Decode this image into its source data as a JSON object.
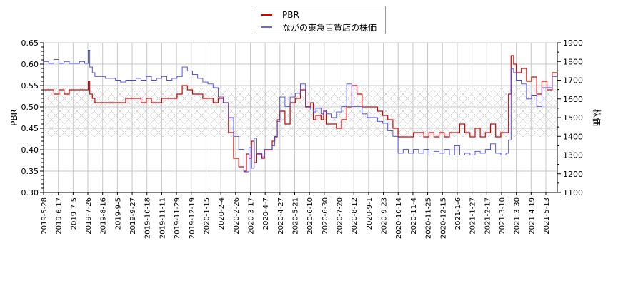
{
  "chart_data": {
    "type": "line",
    "title": "",
    "legend": {
      "position": "top-center",
      "entries": [
        {
          "label": "PBR",
          "color": "#dd0000"
        },
        {
          "label": "ながの東急百貨店の株価",
          "color": "#4444ee"
        }
      ]
    },
    "xlabel": "",
    "ylabel": "PBR",
    "y2label": "株価",
    "ylim": [
      0.3,
      0.65
    ],
    "y2lim": [
      1100,
      1900
    ],
    "yticks": [
      "0.30",
      "0.35",
      "0.40",
      "0.45",
      "0.50",
      "0.55",
      "0.60",
      "0.65"
    ],
    "y2ticks": [
      "1100",
      "1200",
      "1300",
      "1400",
      "1500",
      "1600",
      "1700",
      "1800",
      "1900"
    ],
    "grid": true,
    "hatched_band": {
      "ymin": 0.43,
      "ymax": 0.547
    },
    "x_tick_labels": [
      "2019-5-28",
      "2019-6-17",
      "2019-7-5",
      "2019-7-26",
      "2019-8-16",
      "2019-9-5",
      "2019-9-27",
      "2019-10-18",
      "2019-11-11",
      "2019-11-29",
      "2019-12-19",
      "2020-1-15",
      "2020-2-4",
      "2020-2-26",
      "2020-3-17",
      "2020-4-7",
      "2020-4-27",
      "2020-5-21",
      "2020-6-10",
      "2020-6-30",
      "2020-7-20",
      "2020-8-12",
      "2020-9-1",
      "2020-9-23",
      "2020-10-14",
      "2020-11-4",
      "2020-11-25",
      "2020-12-15",
      "2021-1-6",
      "2021-1-27",
      "2021-2-17",
      "2021-3-10",
      "2021-3-30",
      "2021-4-19",
      "2021-5-13"
    ],
    "series": [
      {
        "name": "PBR",
        "axis": "left",
        "color": "#dd0000",
        "x_frac": [
          0.0,
          0.01,
          0.02,
          0.03,
          0.04,
          0.05,
          0.06,
          0.07,
          0.08,
          0.087,
          0.09,
          0.095,
          0.1,
          0.11,
          0.12,
          0.13,
          0.14,
          0.15,
          0.16,
          0.17,
          0.18,
          0.19,
          0.2,
          0.21,
          0.22,
          0.23,
          0.24,
          0.25,
          0.26,
          0.27,
          0.28,
          0.29,
          0.3,
          0.31,
          0.32,
          0.33,
          0.34,
          0.35,
          0.36,
          0.37,
          0.38,
          0.39,
          0.395,
          0.4,
          0.405,
          0.41,
          0.415,
          0.42,
          0.425,
          0.43,
          0.44,
          0.445,
          0.45,
          0.455,
          0.46,
          0.47,
          0.48,
          0.49,
          0.5,
          0.51,
          0.52,
          0.525,
          0.53,
          0.54,
          0.545,
          0.55,
          0.56,
          0.57,
          0.58,
          0.59,
          0.6,
          0.61,
          0.62,
          0.63,
          0.64,
          0.65,
          0.66,
          0.67,
          0.68,
          0.69,
          0.7,
          0.71,
          0.72,
          0.73,
          0.74,
          0.75,
          0.76,
          0.77,
          0.78,
          0.79,
          0.8,
          0.81,
          0.82,
          0.83,
          0.84,
          0.85,
          0.86,
          0.87,
          0.88,
          0.89,
          0.9,
          0.905,
          0.91,
          0.915,
          0.92,
          0.93,
          0.94,
          0.95,
          0.96,
          0.97,
          0.98,
          0.99,
          1.0
        ],
        "values": [
          0.54,
          0.54,
          0.53,
          0.54,
          0.53,
          0.54,
          0.54,
          0.54,
          0.54,
          0.56,
          0.53,
          0.52,
          0.51,
          0.51,
          0.51,
          0.51,
          0.51,
          0.51,
          0.52,
          0.52,
          0.52,
          0.51,
          0.52,
          0.51,
          0.51,
          0.52,
          0.52,
          0.52,
          0.53,
          0.55,
          0.54,
          0.53,
          0.53,
          0.52,
          0.52,
          0.51,
          0.52,
          0.51,
          0.44,
          0.38,
          0.36,
          0.35,
          0.39,
          0.38,
          0.42,
          0.37,
          0.39,
          0.39,
          0.38,
          0.4,
          0.4,
          0.42,
          0.43,
          0.47,
          0.49,
          0.46,
          0.51,
          0.52,
          0.54,
          0.5,
          0.51,
          0.47,
          0.48,
          0.47,
          0.49,
          0.46,
          0.46,
          0.45,
          0.47,
          0.5,
          0.55,
          0.53,
          0.5,
          0.5,
          0.5,
          0.49,
          0.48,
          0.47,
          0.45,
          0.43,
          0.43,
          0.43,
          0.44,
          0.44,
          0.43,
          0.44,
          0.43,
          0.44,
          0.43,
          0.44,
          0.44,
          0.46,
          0.44,
          0.43,
          0.45,
          0.43,
          0.44,
          0.46,
          0.43,
          0.44,
          0.44,
          0.53,
          0.62,
          0.6,
          0.58,
          0.59,
          0.56,
          0.57,
          0.53,
          0.56,
          0.54,
          0.58,
          0.57,
          0.57
        ]
      },
      {
        "name": "ながの東急百貨店の株価",
        "axis": "right",
        "color": "#4444ee",
        "x_frac": [
          0.0,
          0.01,
          0.02,
          0.03,
          0.04,
          0.05,
          0.06,
          0.07,
          0.08,
          0.087,
          0.09,
          0.095,
          0.1,
          0.11,
          0.12,
          0.13,
          0.14,
          0.15,
          0.16,
          0.17,
          0.18,
          0.19,
          0.2,
          0.21,
          0.22,
          0.23,
          0.24,
          0.25,
          0.26,
          0.27,
          0.28,
          0.29,
          0.3,
          0.31,
          0.32,
          0.33,
          0.34,
          0.35,
          0.36,
          0.37,
          0.38,
          0.39,
          0.395,
          0.4,
          0.405,
          0.41,
          0.415,
          0.42,
          0.425,
          0.43,
          0.44,
          0.445,
          0.45,
          0.455,
          0.46,
          0.47,
          0.48,
          0.49,
          0.5,
          0.51,
          0.52,
          0.525,
          0.53,
          0.54,
          0.545,
          0.55,
          0.56,
          0.57,
          0.58,
          0.59,
          0.6,
          0.61,
          0.62,
          0.63,
          0.64,
          0.65,
          0.66,
          0.67,
          0.68,
          0.69,
          0.7,
          0.71,
          0.72,
          0.73,
          0.74,
          0.75,
          0.76,
          0.77,
          0.78,
          0.79,
          0.8,
          0.81,
          0.82,
          0.83,
          0.84,
          0.85,
          0.86,
          0.87,
          0.88,
          0.89,
          0.9,
          0.905,
          0.91,
          0.915,
          0.92,
          0.93,
          0.94,
          0.95,
          0.96,
          0.97,
          0.98,
          0.99,
          1.0
        ],
        "values": [
          1800,
          1790,
          1810,
          1790,
          1800,
          1790,
          1790,
          1800,
          1790,
          1860,
          1770,
          1740,
          1720,
          1720,
          1710,
          1710,
          1700,
          1690,
          1700,
          1700,
          1710,
          1700,
          1720,
          1700,
          1710,
          1720,
          1700,
          1710,
          1720,
          1770,
          1750,
          1730,
          1710,
          1690,
          1680,
          1660,
          1610,
          1580,
          1500,
          1400,
          1330,
          1210,
          1210,
          1340,
          1230,
          1390,
          1310,
          1310,
          1290,
          1330,
          1330,
          1350,
          1400,
          1480,
          1610,
          1560,
          1610,
          1630,
          1680,
          1560,
          1540,
          1530,
          1550,
          1520,
          1540,
          1520,
          1500,
          1530,
          1560,
          1680,
          1560,
          1560,
          1520,
          1500,
          1500,
          1480,
          1470,
          1430,
          1400,
          1310,
          1330,
          1310,
          1330,
          1310,
          1330,
          1300,
          1320,
          1310,
          1330,
          1300,
          1350,
          1300,
          1310,
          1300,
          1320,
          1310,
          1330,
          1360,
          1310,
          1300,
          1310,
          1380,
          1760,
          1740,
          1700,
          1680,
          1600,
          1620,
          1560,
          1660,
          1660,
          1720,
          1630,
          1640
        ]
      }
    ]
  }
}
